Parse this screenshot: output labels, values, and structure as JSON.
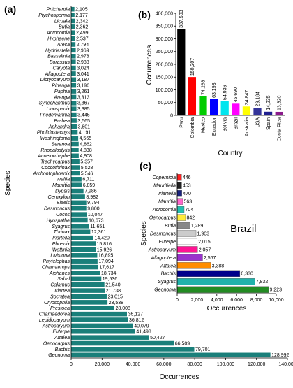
{
  "chart_data": [
    {
      "panel": "(a)",
      "type": "bar",
      "orientation": "horizontal",
      "xlabel": "Occurrences",
      "ylabel": "Species",
      "xlim": [
        0,
        140000
      ],
      "xticks": [
        0,
        20000,
        40000,
        60000,
        80000,
        100000,
        120000,
        140000
      ],
      "xtick_labels": [
        "0",
        "20,000",
        "40,000",
        "60,000",
        "80,000",
        "100,000",
        "120,000",
        "140,000"
      ],
      "bar_color": "#1a7f7a",
      "categories": [
        "Pritchardia",
        "Ptychosperma",
        "Licuala",
        "Butia",
        "Acrocomia",
        "Hyphaene",
        "Areca",
        "Hydriastele",
        "Basselinia",
        "Borassus",
        "Caryota",
        "Allagoptera",
        "Dictyocaryum",
        "Pinanga",
        "Raphia",
        "Arenga",
        "Synechanthus",
        "Linospadix",
        "Friedemannia",
        "Brahea",
        "Aphandra",
        "Pholidostachys",
        "Washingtonia",
        "Serenoa",
        "Rhopalostylis",
        "Acoelorrhaphe",
        "Trachycarpus",
        "Coccothrinax",
        "Archontophoenix",
        "Welfia",
        "Mauritia",
        "Dypsis",
        "Ceroxylon",
        "Elaeis",
        "Desmoncus",
        "Cocos",
        "Hyospathe",
        "Syagrus",
        "Thrinax",
        "Iriartella",
        "Phoenix",
        "Wettinia",
        "Livistona",
        "Phytelephas",
        "Chamaerops",
        "Aiphanes",
        "Sabal",
        "Calamus",
        "Iriartea",
        "Socratea",
        "Cryosophila",
        "Prestoea",
        "Chamaedorea",
        "Lepidocaryum",
        "Astrocaryum",
        "Euterpe",
        "Attalea",
        "Oenocarpus",
        "Bactris",
        "Geonoma"
      ],
      "values": [
        2105,
        2177,
        2342,
        2362,
        2499,
        2537,
        2794,
        2969,
        2978,
        2988,
        3024,
        3041,
        3187,
        3196,
        3261,
        3313,
        3367,
        3385,
        3445,
        3565,
        3601,
        4191,
        4565,
        4862,
        4838,
        4908,
        5357,
        5528,
        5546,
        6711,
        6859,
        7986,
        8982,
        9794,
        9800,
        10047,
        10673,
        11651,
        12361,
        14420,
        15816,
        15926,
        16895,
        17094,
        17617,
        18734,
        19536,
        21540,
        21738,
        23015,
        23538,
        28008,
        36127,
        36812,
        40079,
        41498,
        50427,
        66509,
        79701,
        128992
      ],
      "value_labels": [
        "2,105",
        "2,177",
        "2,342",
        "2,362",
        "2,499",
        "2,537",
        "2,794",
        "2,969",
        "2,978",
        "2,988",
        "3,024",
        "3,041",
        "3,187",
        "3,196",
        "3,261",
        "3,313",
        "3,367",
        "3,385",
        "3,445",
        "3,565",
        "3,601",
        "4,191",
        "4,565",
        "4,862",
        "4,838",
        "4,908",
        "5,357",
        "5,528",
        "5,546",
        "6,711",
        "6,859",
        "7,986",
        "8,982",
        "9,794",
        "9,800",
        "10,047",
        "10,673",
        "11,651",
        "12,361",
        "14,420",
        "15,816",
        "15,926",
        "16,895",
        "17,094",
        "17,617",
        "18,734",
        "19,536",
        "21,540",
        "21,738",
        "23,015",
        "23,538",
        "28,008",
        "36,127",
        "36,812",
        "40,079",
        "41,498",
        "50,427",
        "66,509",
        "79,701",
        "128,992"
      ]
    },
    {
      "panel": "(b)",
      "type": "bar",
      "orientation": "vertical",
      "xlabel": "Country",
      "ylabel": "Occurrences",
      "ylim": [
        0,
        400000
      ],
      "yticks": [
        0,
        50000,
        100000,
        150000,
        200000,
        250000,
        300000,
        350000,
        400000
      ],
      "ytick_labels": [
        "0",
        "50,000",
        "100,000",
        "150,000",
        "200,000",
        "250,000",
        "300,000",
        "350,000",
        "400,000"
      ],
      "categories": [
        "Peru",
        "Colombia",
        "Mexico",
        "Ecuador",
        "Bolivia",
        "Brazil",
        "Australia",
        "USA",
        "Spain",
        "Costa Rica"
      ],
      "values": [
        337503,
        150307,
        74268,
        63193,
        54936,
        45690,
        34847,
        29184,
        14235,
        13820
      ],
      "value_labels": [
        "337,503",
        "150,307",
        "74,268",
        "63,193",
        "54,936",
        "45,690",
        "34,847",
        "29,184",
        "14,235",
        "13,820"
      ],
      "colors": [
        "#000000",
        "#ff0000",
        "#00cc00",
        "#0000ff",
        "#00e5ee",
        "#ff00ff",
        "#ffff00",
        "#333399",
        "#1f1f8f",
        "#8b1a8b"
      ]
    },
    {
      "panel": "(c)",
      "type": "bar",
      "orientation": "horizontal",
      "annotation": "Brazil",
      "xlabel": "Occurrences",
      "ylabel": "Species",
      "xlim": [
        0,
        10000
      ],
      "xticks": [
        0,
        2000,
        4000,
        6000,
        8000,
        10000
      ],
      "xtick_labels": [
        "0",
        "2,000",
        "4,000",
        "6,000",
        "8,000",
        "10,000"
      ],
      "categories": [
        "Copernicia",
        "Mauritiella",
        "Iriartella",
        "Mauritia",
        "Acrocomia",
        "Oenocarpus",
        "Butia",
        "Desmoncus",
        "Euterpe",
        "Astrocaryum",
        "Allagoptera",
        "Attalea",
        "Bactris",
        "Syagrus",
        "Geonoma"
      ],
      "values": [
        446,
        453,
        470,
        563,
        704,
        842,
        1289,
        1903,
        2015,
        2057,
        2567,
        3388,
        6330,
        7832,
        9223
      ],
      "value_labels": [
        "446",
        "453",
        "470",
        "563",
        "704",
        "842",
        "1,289",
        "1,903",
        "2,015",
        "2,057",
        "2,567",
        "3,388",
        "6,330",
        "7,832",
        "9,223"
      ],
      "colors": [
        "#ff2020",
        "#222222",
        "#1a237e",
        "#ff66cc",
        "#20c0b0",
        "#ffeb3b",
        "#888888",
        "#cccccc",
        "#ffffff",
        "#ff1493",
        "#9932cc",
        "#ff8c00",
        "#00008b",
        "#20b2aa",
        "#228b22"
      ]
    }
  ]
}
